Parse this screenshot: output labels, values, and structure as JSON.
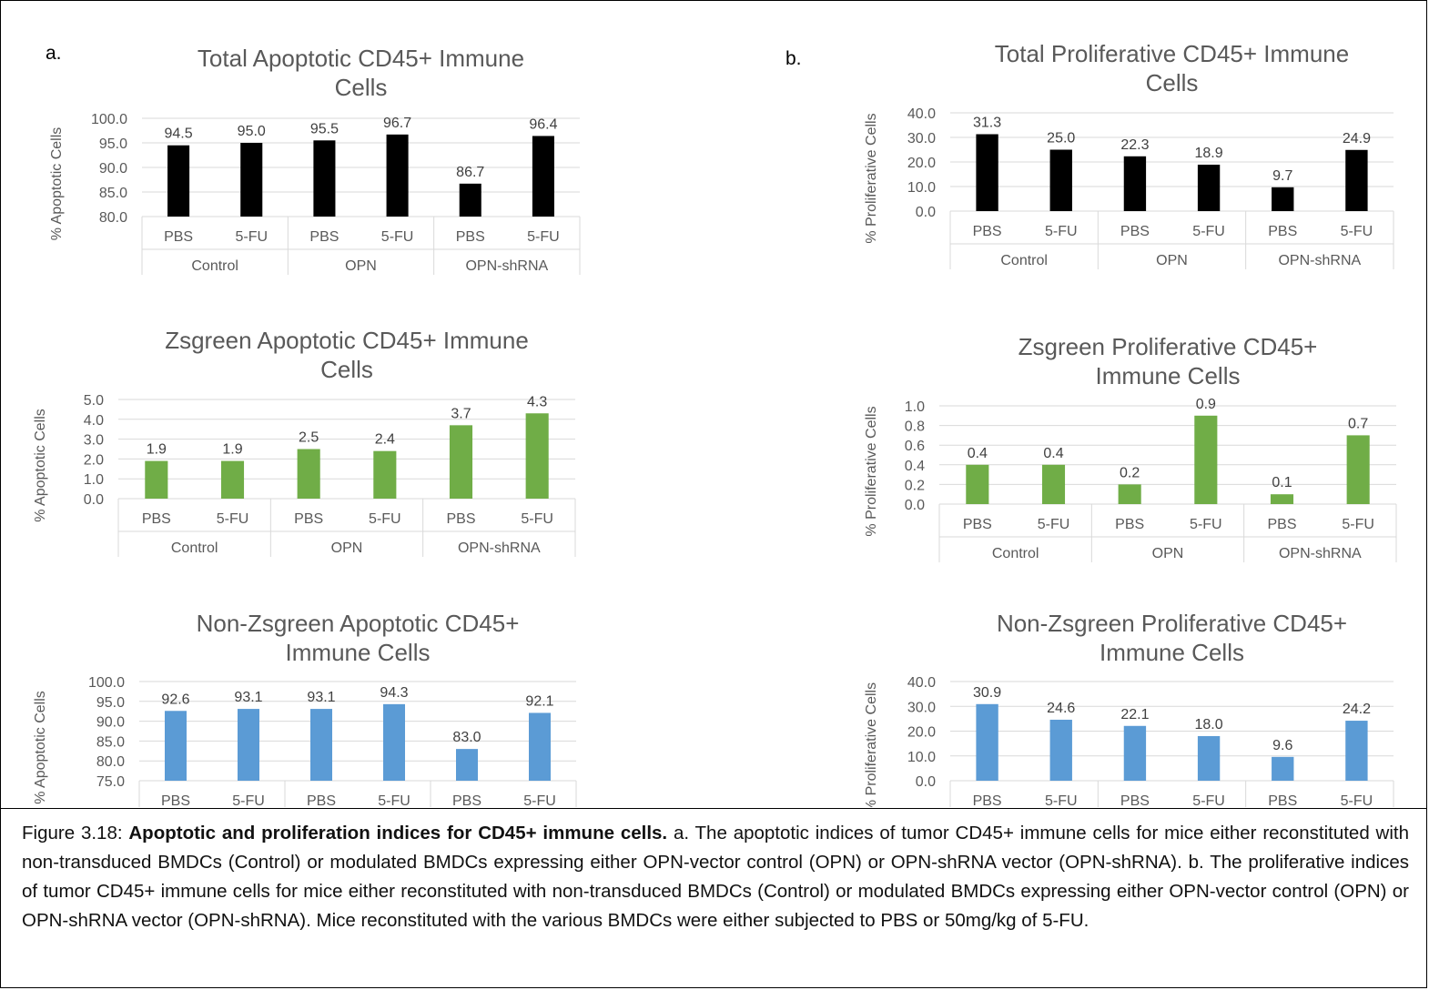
{
  "panel_labels": {
    "a": "a.",
    "b": "b."
  },
  "caption": {
    "prefix": "Figure 3.18: ",
    "bold": "Apoptotic and proliferation indices for CD45+ immune cells.",
    "rest": " a. The apoptotic indices of tumor CD45+ immune cells for mice either reconstituted with non-transduced BMDCs (Control) or modulated BMDCs expressing either OPN-vector control (OPN) or OPN-shRNA vector (OPN-shRNA). b. The proliferative indices of tumor CD45+ immune cells for mice either reconstituted with non-transduced BMDCs (Control) or modulated BMDCs expressing either OPN-vector control (OPN) or OPN-shRNA vector (OPN-shRNA). Mice reconstituted with the various BMDCs were either subjected to PBS or 50mg/kg of 5-FU."
  },
  "chart_data": [
    {
      "type": "bar",
      "title": [
        "Total Apoptotic CD45+ Immune",
        "Cells"
      ],
      "ylabel": "% Apoptotic Cells",
      "ylim": [
        80,
        100
      ],
      "yticks": [
        80.0,
        85.0,
        90.0,
        95.0,
        100.0
      ],
      "categories": [
        "PBS",
        "5-FU",
        "PBS",
        "5-FU",
        "PBS",
        "5-FU"
      ],
      "groups": [
        "Control",
        "OPN",
        "OPN-shRNA"
      ],
      "values": [
        94.5,
        95.0,
        95.5,
        96.7,
        86.7,
        96.4
      ],
      "color": "#000000",
      "grid": true
    },
    {
      "type": "bar",
      "title": [
        "Zsgreen Apoptotic CD45+ Immune",
        "Cells"
      ],
      "ylabel": "% Apoptotic Cells",
      "ylim": [
        0,
        5
      ],
      "yticks": [
        0.0,
        1.0,
        2.0,
        3.0,
        4.0,
        5.0
      ],
      "categories": [
        "PBS",
        "5-FU",
        "PBS",
        "5-FU",
        "PBS",
        "5-FU"
      ],
      "groups": [
        "Control",
        "OPN",
        "OPN-shRNA"
      ],
      "values": [
        1.9,
        1.9,
        2.5,
        2.4,
        3.7,
        4.3
      ],
      "color": "#70AD47",
      "grid": true
    },
    {
      "type": "bar",
      "title": [
        "Non-Zsgreen Apoptotic CD45+",
        "Immune Cells"
      ],
      "ylabel": "% Apoptotic Cells",
      "ylim": [
        75,
        100
      ],
      "yticks": [
        75.0,
        80.0,
        85.0,
        90.0,
        95.0,
        100.0
      ],
      "categories": [
        "PBS",
        "5-FU",
        "PBS",
        "5-FU",
        "PBS",
        "5-FU"
      ],
      "groups": [],
      "values": [
        92.6,
        93.1,
        93.1,
        94.3,
        83.0,
        92.1
      ],
      "color": "#5B9BD5",
      "grid": true
    },
    {
      "type": "bar",
      "title": [
        "Total Proliferative CD45+ Immune",
        "Cells"
      ],
      "ylabel": "% Proliferative Cells",
      "ylim": [
        0,
        40
      ],
      "yticks": [
        0.0,
        10.0,
        20.0,
        30.0,
        40.0
      ],
      "categories": [
        "PBS",
        "5-FU",
        "PBS",
        "5-FU",
        "PBS",
        "5-FU"
      ],
      "groups": [
        "Control",
        "OPN",
        "OPN-shRNA"
      ],
      "values": [
        31.3,
        25.0,
        22.3,
        18.9,
        9.7,
        24.9
      ],
      "color": "#000000",
      "grid": true
    },
    {
      "type": "bar",
      "title": [
        "Zsgreen Proliferative CD45+",
        "Immune Cells"
      ],
      "ylabel": "% Proliferative Cells",
      "ylim": [
        0,
        1
      ],
      "yticks": [
        0.0,
        0.2,
        0.4,
        0.6,
        0.8,
        1.0
      ],
      "categories": [
        "PBS",
        "5-FU",
        "PBS",
        "5-FU",
        "PBS",
        "5-FU"
      ],
      "groups": [
        "Control",
        "OPN",
        "OPN-shRNA"
      ],
      "values": [
        0.4,
        0.4,
        0.2,
        0.9,
        0.1,
        0.7
      ],
      "color": "#70AD47",
      "grid": true
    },
    {
      "type": "bar",
      "title": [
        "Non-Zsgreen Proliferative CD45+",
        "Immune Cells"
      ],
      "ylabel": "% Proliferative Cells",
      "ylim": [
        0,
        40
      ],
      "yticks": [
        0.0,
        10.0,
        20.0,
        30.0,
        40.0
      ],
      "categories": [
        "PBS",
        "5-FU",
        "PBS",
        "5-FU",
        "PBS",
        "5-FU"
      ],
      "groups": [],
      "values": [
        30.9,
        24.6,
        22.1,
        18.0,
        9.6,
        24.2
      ],
      "color": "#5B9BD5",
      "grid": true
    }
  ]
}
